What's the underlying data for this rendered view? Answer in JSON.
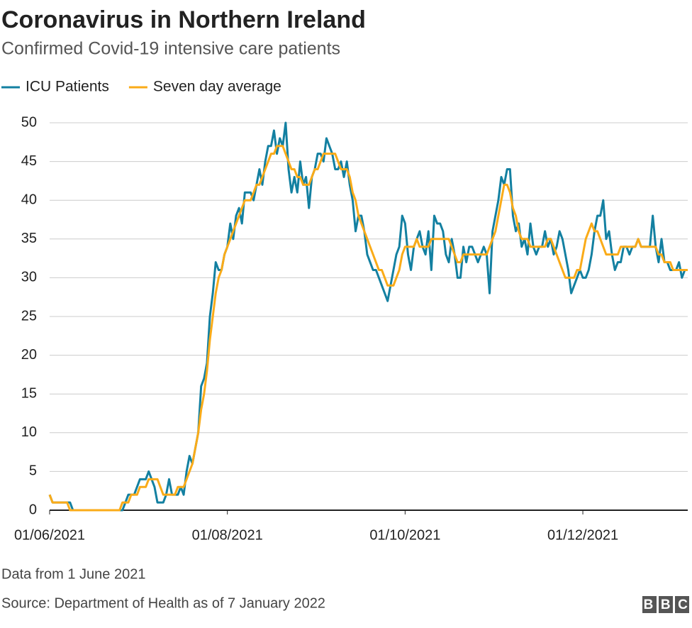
{
  "chart_data": {
    "type": "line",
    "title": "Coronavirus in Northern Ireland",
    "subtitle": "Confirmed Covid-19 intensive care patients",
    "footnote": "Data from 1 June 2021",
    "source": "Source: Department of Health as of 7 January 2022",
    "x": [
      "2021-06-01",
      "2021-06-02",
      "2021-06-03",
      "2021-06-04",
      "2021-06-05",
      "2021-06-06",
      "2021-06-07",
      "2021-06-08",
      "2021-06-09",
      "2021-06-10",
      "2021-06-11",
      "2021-06-12",
      "2021-06-13",
      "2021-06-14",
      "2021-06-15",
      "2021-06-16",
      "2021-06-17",
      "2021-06-18",
      "2021-06-19",
      "2021-06-20",
      "2021-06-21",
      "2021-06-22",
      "2021-06-23",
      "2021-06-24",
      "2021-06-25",
      "2021-06-26",
      "2021-06-27",
      "2021-06-28",
      "2021-06-29",
      "2021-06-30",
      "2021-07-01",
      "2021-07-02",
      "2021-07-03",
      "2021-07-04",
      "2021-07-05",
      "2021-07-06",
      "2021-07-07",
      "2021-07-08",
      "2021-07-09",
      "2021-07-10",
      "2021-07-11",
      "2021-07-12",
      "2021-07-13",
      "2021-07-14",
      "2021-07-15",
      "2021-07-16",
      "2021-07-17",
      "2021-07-18",
      "2021-07-19",
      "2021-07-20",
      "2021-07-21",
      "2021-07-22",
      "2021-07-23",
      "2021-07-24",
      "2021-07-25",
      "2021-07-26",
      "2021-07-27",
      "2021-07-28",
      "2021-07-29",
      "2021-07-30",
      "2021-07-31",
      "2021-08-01",
      "2021-08-02",
      "2021-08-03",
      "2021-08-04",
      "2021-08-05",
      "2021-08-06",
      "2021-08-07",
      "2021-08-08",
      "2021-08-09",
      "2021-08-10",
      "2021-08-11",
      "2021-08-12",
      "2021-08-13",
      "2021-08-14",
      "2021-08-15",
      "2021-08-16",
      "2021-08-17",
      "2021-08-18",
      "2021-08-19",
      "2021-08-20",
      "2021-08-21",
      "2021-08-22",
      "2021-08-23",
      "2021-08-24",
      "2021-08-25",
      "2021-08-26",
      "2021-08-27",
      "2021-08-28",
      "2021-08-29",
      "2021-08-30",
      "2021-08-31",
      "2021-09-01",
      "2021-09-02",
      "2021-09-03",
      "2021-09-04",
      "2021-09-05",
      "2021-09-06",
      "2021-09-07",
      "2021-09-08",
      "2021-09-09",
      "2021-09-10",
      "2021-09-11",
      "2021-09-12",
      "2021-09-13",
      "2021-09-14",
      "2021-09-15",
      "2021-09-16",
      "2021-09-17",
      "2021-09-18",
      "2021-09-19",
      "2021-09-20",
      "2021-09-21",
      "2021-09-22",
      "2021-09-23",
      "2021-09-24",
      "2021-09-25",
      "2021-09-26",
      "2021-09-27",
      "2021-09-28",
      "2021-09-29",
      "2021-09-30",
      "2021-10-01",
      "2021-10-02",
      "2021-10-03",
      "2021-10-04",
      "2021-10-05",
      "2021-10-06",
      "2021-10-07",
      "2021-10-08",
      "2021-10-09",
      "2021-10-10",
      "2021-10-11",
      "2021-10-12",
      "2021-10-13",
      "2021-10-14",
      "2021-10-15",
      "2021-10-16",
      "2021-10-17",
      "2021-10-18",
      "2021-10-19",
      "2021-10-20",
      "2021-10-21",
      "2021-10-22",
      "2021-10-23",
      "2021-10-24",
      "2021-10-25",
      "2021-10-26",
      "2021-10-27",
      "2021-10-28",
      "2021-10-29",
      "2021-10-30",
      "2021-10-31",
      "2021-11-01",
      "2021-11-02",
      "2021-11-03",
      "2021-11-04",
      "2021-11-05",
      "2021-11-06",
      "2021-11-07",
      "2021-11-08",
      "2021-11-09",
      "2021-11-10",
      "2021-11-11",
      "2021-11-12",
      "2021-11-13",
      "2021-11-14",
      "2021-11-15",
      "2021-11-16",
      "2021-11-17",
      "2021-11-18",
      "2021-11-19",
      "2021-11-20",
      "2021-11-21",
      "2021-11-22",
      "2021-11-23",
      "2021-11-24",
      "2021-11-25",
      "2021-11-26",
      "2021-11-27",
      "2021-11-28",
      "2021-11-29",
      "2021-11-30",
      "2021-12-01",
      "2021-12-02",
      "2021-12-03",
      "2021-12-04",
      "2021-12-05",
      "2021-12-06",
      "2021-12-07",
      "2021-12-08",
      "2021-12-09",
      "2021-12-10",
      "2021-12-11",
      "2021-12-12",
      "2021-12-13",
      "2021-12-14",
      "2021-12-15",
      "2021-12-16",
      "2021-12-17",
      "2021-12-18",
      "2021-12-19",
      "2021-12-20",
      "2021-12-21",
      "2021-12-22",
      "2021-12-23",
      "2021-12-24",
      "2021-12-25",
      "2021-12-26",
      "2021-12-27",
      "2021-12-28",
      "2021-12-29",
      "2021-12-30",
      "2021-12-31",
      "2022-01-01",
      "2022-01-02",
      "2022-01-03",
      "2022-01-04",
      "2022-01-05",
      "2022-01-06"
    ],
    "series": [
      {
        "name": "ICU Patients",
        "color": "#1380a1",
        "values": [
          2,
          1,
          1,
          1,
          1,
          1,
          1,
          1,
          0,
          0,
          0,
          0,
          0,
          0,
          0,
          0,
          0,
          0,
          0,
          0,
          0,
          0,
          0,
          0,
          0,
          0,
          1,
          2,
          2,
          2,
          3,
          4,
          4,
          4,
          5,
          4,
          3,
          1,
          1,
          1,
          2,
          4,
          2,
          2,
          2,
          3,
          2,
          5,
          7,
          6,
          8,
          10,
          16,
          17,
          19,
          25,
          28,
          32,
          31,
          31,
          33,
          34,
          37,
          35,
          38,
          39,
          37,
          41,
          41,
          41,
          40,
          42,
          44,
          42,
          45,
          47,
          47,
          49,
          46,
          48,
          47,
          50,
          44,
          41,
          43,
          41,
          45,
          42,
          43,
          39,
          43,
          44,
          46,
          46,
          45,
          48,
          47,
          46,
          44,
          44,
          45,
          43,
          45,
          42,
          40,
          36,
          38,
          38,
          36,
          33,
          32,
          31,
          31,
          30,
          29,
          28,
          27,
          29,
          31,
          33,
          34,
          38,
          37,
          33,
          31,
          34,
          35,
          36,
          34,
          33,
          36,
          31,
          38,
          37,
          37,
          36,
          33,
          32,
          35,
          33,
          30,
          30,
          34,
          32,
          34,
          34,
          33,
          32,
          33,
          34,
          33,
          28,
          36,
          38,
          40,
          43,
          42,
          44,
          44,
          38,
          36,
          37,
          34,
          35,
          33,
          37,
          34,
          33,
          34,
          34,
          36,
          34,
          35,
          33,
          34,
          36,
          35,
          33,
          31,
          28,
          29,
          30,
          31,
          30,
          30,
          31,
          33,
          36,
          38,
          38,
          40,
          35,
          36,
          33,
          31,
          32,
          32,
          34,
          34,
          33,
          34,
          34,
          35,
          34,
          34,
          34,
          34,
          38,
          34,
          32,
          35,
          32,
          32,
          31,
          31,
          31,
          32,
          30,
          31,
          31
        ]
      },
      {
        "name": "Seven day average",
        "color": "#faab18",
        "values": [
          2,
          1,
          1,
          1,
          1,
          1,
          1,
          0,
          0,
          0,
          0,
          0,
          0,
          0,
          0,
          0,
          0,
          0,
          0,
          0,
          0,
          0,
          0,
          0,
          0,
          1,
          1,
          1,
          2,
          2,
          2,
          3,
          3,
          3,
          4,
          4,
          4,
          4,
          3,
          2,
          2,
          2,
          2,
          2,
          3,
          3,
          3,
          4,
          5,
          6,
          8,
          10,
          13,
          15,
          18,
          22,
          25,
          28,
          30,
          31,
          33,
          34,
          35,
          36,
          37,
          38,
          39,
          40,
          40,
          40,
          41,
          42,
          42,
          43,
          44,
          45,
          46,
          46,
          47,
          47,
          47,
          46,
          45,
          44,
          44,
          43,
          43,
          42,
          42,
          42,
          43,
          44,
          44,
          45,
          46,
          46,
          46,
          46,
          46,
          45,
          44,
          44,
          44,
          43,
          41,
          40,
          38,
          37,
          36,
          35,
          34,
          33,
          32,
          31,
          31,
          30,
          29,
          29,
          29,
          30,
          31,
          33,
          34,
          34,
          34,
          34,
          35,
          34,
          34,
          34,
          34,
          35,
          35,
          35,
          35,
          35,
          35,
          35,
          34,
          33,
          32,
          32,
          33,
          33,
          33,
          33,
          33,
          33,
          33,
          33,
          33,
          34,
          35,
          36,
          38,
          40,
          42,
          42,
          41,
          39,
          38,
          36,
          35,
          35,
          35,
          34,
          34,
          34,
          34,
          34,
          34,
          35,
          35,
          34,
          33,
          32,
          31,
          30,
          30,
          30,
          30,
          31,
          31,
          33,
          35,
          36,
          37,
          36,
          36,
          35,
          34,
          33,
          33,
          33,
          33,
          33,
          34,
          34,
          34,
          34,
          34,
          34,
          35,
          34,
          34,
          34,
          34,
          34,
          34,
          33,
          33,
          32,
          32,
          32,
          31,
          31,
          31,
          31,
          31,
          31
        ]
      }
    ],
    "xlim": [
      "2021-06-01",
      "2022-01-06"
    ],
    "xticks": [
      {
        "value": "2021-06-01",
        "label": "01/06/2021"
      },
      {
        "value": "2021-08-01",
        "label": "01/08/2021"
      },
      {
        "value": "2021-10-01",
        "label": "01/10/2021"
      },
      {
        "value": "2021-12-01",
        "label": "01/12/2021"
      }
    ],
    "ylim": [
      0,
      50
    ],
    "yticks": [
      0,
      5,
      10,
      15,
      20,
      25,
      30,
      35,
      40,
      45,
      50
    ],
    "grid": true
  },
  "branding": "BBC"
}
